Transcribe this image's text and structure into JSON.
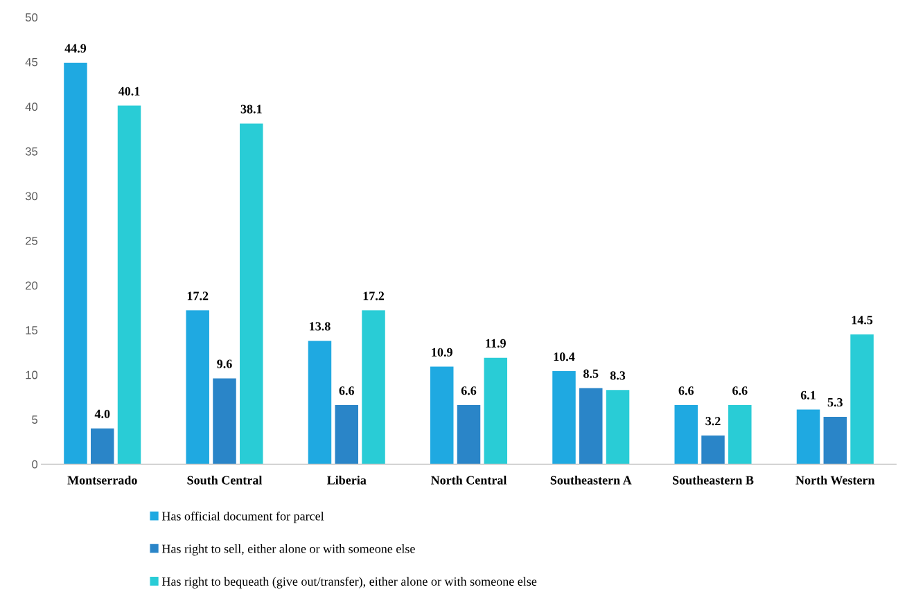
{
  "chart_data": {
    "type": "bar",
    "categories": [
      "Montserrado",
      "South Central",
      "Liberia",
      "North Central",
      "Southeastern A",
      "Southeastern B",
      "North Western"
    ],
    "series": [
      {
        "name": "Has official document for parcel",
        "color": "#1fa9e1",
        "values": [
          44.9,
          17.2,
          13.8,
          10.9,
          10.4,
          6.6,
          6.1
        ],
        "value_labels": [
          "44.9",
          "17.2",
          "13.8",
          "10.9",
          "10.4",
          "6.6",
          "6.1"
        ]
      },
      {
        "name": "Has right to sell, either alone or with someone else",
        "color": "#2a85c8",
        "values": [
          4.0,
          9.6,
          6.6,
          6.6,
          8.5,
          3.2,
          5.3
        ],
        "value_labels": [
          "4.0",
          "9.6",
          "6.6",
          "6.6",
          "8.5",
          "3.2",
          "5.3"
        ]
      },
      {
        "name": "Has right to bequeath (give out/transfer), either alone or with someone else",
        "color": "#29ccd6",
        "values": [
          40.1,
          38.1,
          17.2,
          11.9,
          8.3,
          6.6,
          14.5
        ],
        "value_labels": [
          "40.1",
          "38.1",
          "17.2",
          "11.9",
          "8.3",
          "6.6",
          "14.5"
        ]
      }
    ],
    "ylim": [
      0,
      50
    ],
    "yticks": [
      0,
      5,
      10,
      15,
      20,
      25,
      30,
      35,
      40,
      45,
      50
    ],
    "grid": false,
    "legend": "bottom"
  }
}
